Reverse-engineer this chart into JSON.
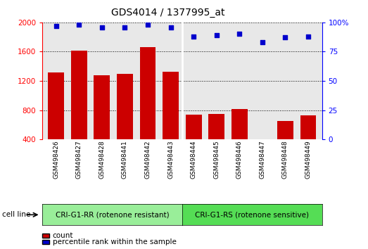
{
  "title": "GDS4014 / 1377995_at",
  "categories": [
    "GSM498426",
    "GSM498427",
    "GSM498428",
    "GSM498441",
    "GSM498442",
    "GSM498443",
    "GSM498444",
    "GSM498445",
    "GSM498446",
    "GSM498447",
    "GSM498448",
    "GSM498449"
  ],
  "bar_values": [
    1320,
    1610,
    1280,
    1295,
    1660,
    1330,
    740,
    745,
    820,
    390,
    650,
    730
  ],
  "percentile_values": [
    97,
    98,
    96,
    96,
    98,
    96,
    88,
    89,
    90,
    83,
    87,
    88
  ],
  "bar_color": "#cc0000",
  "dot_color": "#0000cc",
  "ylim_left": [
    400,
    2000
  ],
  "ylim_right": [
    0,
    100
  ],
  "yticks_left": [
    400,
    800,
    1200,
    1600,
    2000
  ],
  "yticks_right": [
    0,
    25,
    50,
    75,
    100
  ],
  "ytick_labels_right": [
    "0",
    "25",
    "50",
    "75",
    "100%"
  ],
  "group1_label": "CRI-G1-RR (rotenone resistant)",
  "group2_label": "CRI-G1-RS (rotenone sensitive)",
  "group1_color": "#99ee99",
  "group2_color": "#55dd55",
  "cell_line_label": "cell line",
  "legend_count_label": "count",
  "legend_percentile_label": "percentile rank within the sample",
  "background_color": "#ffffff",
  "plot_bg_color": "#e8e8e8",
  "title_fontsize": 10,
  "tick_fontsize": 7.5,
  "group1_count": 6,
  "group2_count": 6
}
